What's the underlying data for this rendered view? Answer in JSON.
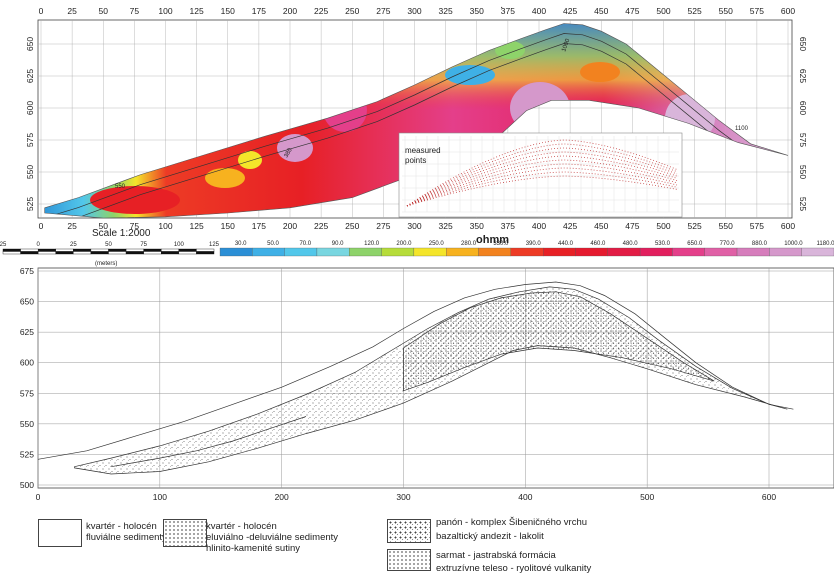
{
  "top": {
    "x_ticks": [
      "0",
      "25",
      "50",
      "75",
      "100",
      "125",
      "150",
      "175",
      "200",
      "225",
      "250",
      "275",
      "300",
      "325",
      "350",
      "375",
      "400",
      "425",
      "450",
      "475",
      "500",
      "525",
      "550",
      "575",
      "600"
    ],
    "y_ticks": [
      "650",
      "625",
      "600",
      "575",
      "550",
      "525"
    ],
    "scale_label": "Scale 1:2000",
    "scalebar_ticks": [
      "25",
      "0",
      "25",
      "50",
      "75",
      "100",
      "125"
    ],
    "scalebar_unit": "(meters)",
    "colorbar_unit": "ohmm",
    "inset_label_1": "measured",
    "inset_label_2": "points",
    "colorbar": {
      "values": [
        "30.0",
        "50.0",
        "70.0",
        "90.0",
        "120.0",
        "200.0",
        "250.0",
        "280.0",
        "330.0",
        "390.0",
        "440.0",
        "460.0",
        "480.0",
        "530.0",
        "650.0",
        "770.0",
        "880.0",
        "1000.0",
        "1180.0"
      ],
      "colors": [
        "#2b8fd6",
        "#3fb0e6",
        "#52c7ea",
        "#79d6e0",
        "#8ed36a",
        "#b6dc3a",
        "#f4e52a",
        "#f7b21f",
        "#f2821f",
        "#ed3b25",
        "#e72025",
        "#e51a2f",
        "#e21c45",
        "#e21f5e",
        "#e43f8a",
        "#e060a6",
        "#d67dbc",
        "#d598cb",
        "#d9b5da"
      ]
    },
    "contour_labels": [
      "1000",
      "550",
      "380",
      "1100"
    ]
  },
  "bottom": {
    "x_ticks": [
      "0",
      "100",
      "200",
      "300",
      "400",
      "500",
      "600"
    ],
    "y_ticks": [
      "675",
      "650",
      "625",
      "600",
      "575",
      "550",
      "525",
      "500"
    ]
  },
  "legend": {
    "l1_line1": "kvartér  - holocén",
    "l1_line2": "fluviálne sedimenty",
    "l2_line1": "kvartér - holocén",
    "l2_line2": "eluviálno -deluviálne sedimenty",
    "l2_line3": "hlinito-kamenité sutiny",
    "l3_line1": "panón - komplex Šibeničného vrchu",
    "l3_line2": "bazaltický andezit  - lakolit",
    "l4_line1": "sarmat - jastrabská formácia",
    "l4_line2": "extruzívne teleso -  ryolitové vulkanity"
  }
}
